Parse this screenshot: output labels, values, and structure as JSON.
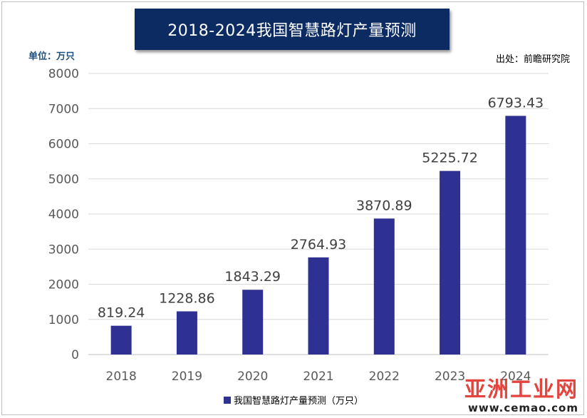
{
  "title": "2018-2024我国智慧路灯产量预测",
  "unit_label": "单位：万只",
  "source_label": "出处：前瞻研究院",
  "watermark": {
    "main": "亚洲工业网",
    "url": "www.cemao.com"
  },
  "colors": {
    "bar": "#2e3192",
    "title_bg": "#0d2b63",
    "grid": "#d9d9d9",
    "axis_text": "#595959"
  },
  "chart_data": {
    "type": "bar",
    "title": "2018-2024我国智慧路灯产量预测",
    "categories": [
      "2018",
      "2019",
      "2020",
      "2021",
      "2022",
      "2023",
      "2024"
    ],
    "series": [
      {
        "name": "我国智慧路灯产量预测（万只）",
        "values": [
          819.24,
          1228.86,
          1843.29,
          2764.93,
          3870.89,
          5225.72,
          6793.43
        ]
      }
    ],
    "data_labels": [
      "819.24",
      "1228.86",
      "1843.29",
      "2764.93",
      "3870.89",
      "5225.72",
      "6793.43"
    ],
    "ylim": [
      0,
      8000
    ],
    "yticks": [
      "0",
      "1000",
      "2000",
      "3000",
      "4000",
      "5000",
      "6000",
      "7000",
      "8000"
    ],
    "grid": true,
    "legend_position": "bottom",
    "xlabel": "",
    "ylabel": "单位：万只"
  }
}
